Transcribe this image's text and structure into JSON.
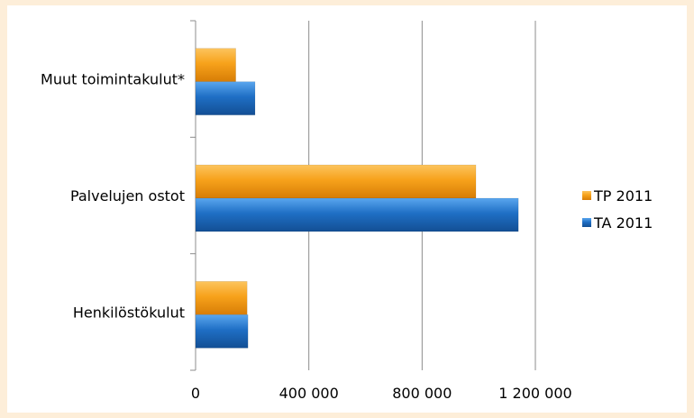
{
  "chart_data": {
    "type": "bar",
    "orientation": "horizontal",
    "categories": [
      "Henkilöstökulut",
      "Palvelujen ostot",
      "Muut toimintakulut*"
    ],
    "series": [
      {
        "name": "TA 2011",
        "values": [
          185000,
          1140000,
          210000
        ],
        "color": "#1f6fc5"
      },
      {
        "name": "TP 2011",
        "values": [
          182000,
          990000,
          142000
        ],
        "color": "#f7a21b"
      }
    ],
    "xlim": [
      0,
      1200000
    ],
    "x_ticks": [
      0,
      400000,
      800000,
      1200000
    ],
    "x_tick_labels": [
      "0",
      "400 000",
      "800 000",
      "1 200 000"
    ],
    "grid": "vertical",
    "legend": {
      "position": "right",
      "entries": [
        "TP 2011",
        "TA 2011"
      ]
    }
  }
}
